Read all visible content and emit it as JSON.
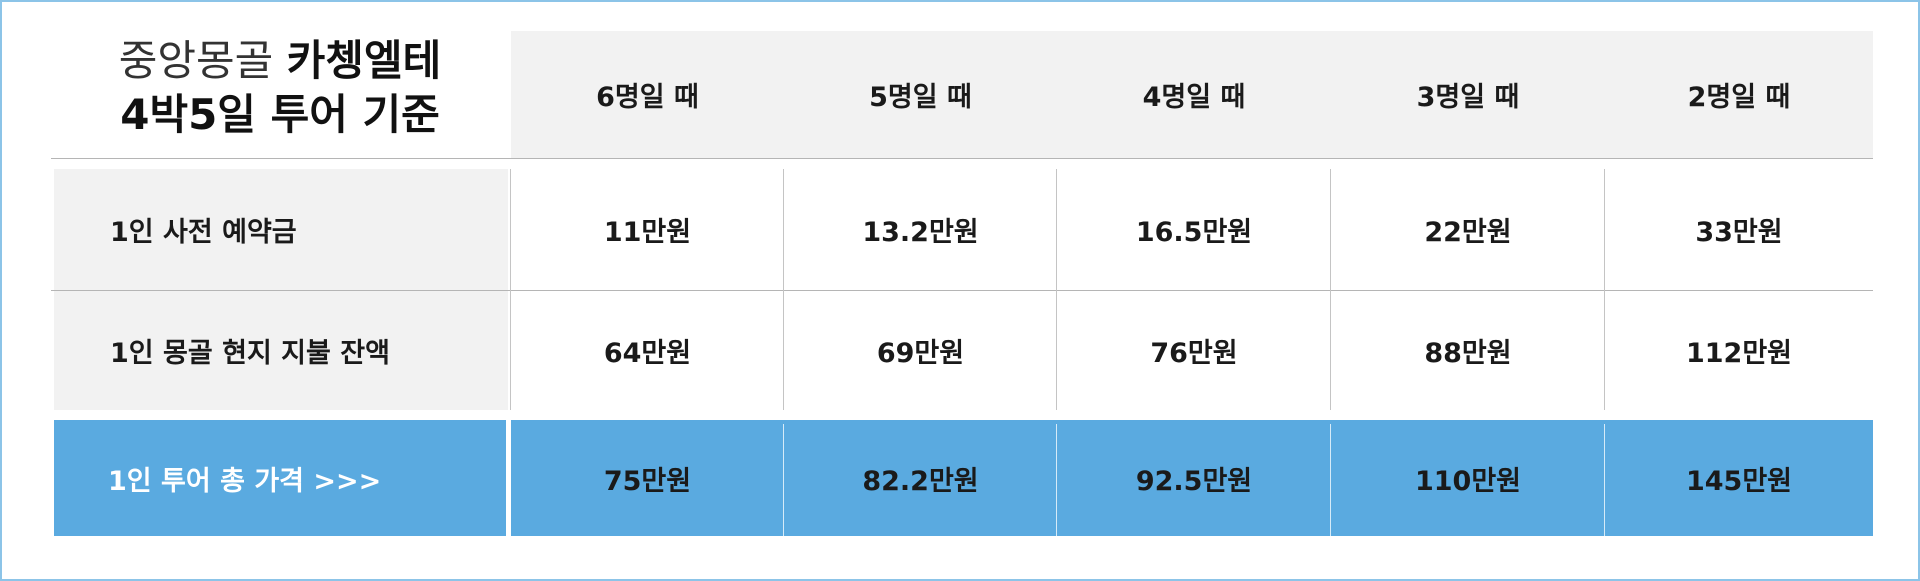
{
  "title": {
    "line1_light": "중앙몽골",
    "line1_bold": "카쳉엘테",
    "line2": "4박5일 투어 기준"
  },
  "columns": [
    "6명일 때",
    "5명일 때",
    "4명일 때",
    "3명일 때",
    "2명일 때"
  ],
  "rows": [
    {
      "label": "1인 사전 예약금",
      "values": [
        "11만원",
        "13.2만원",
        "16.5만원",
        "22만원",
        "33만원"
      ]
    },
    {
      "label": "1인 몽골 현지 지불 잔액",
      "values": [
        "64만원",
        "69만원",
        "76만원",
        "88만원",
        "112만원"
      ]
    },
    {
      "label": "1인 투어 총 가격  >>>",
      "values": [
        "75만원",
        "82.2만원",
        "92.5만원",
        "110만원",
        "145만원"
      ]
    }
  ],
  "colors": {
    "highlight": "#5aaae0",
    "header_bg": "#f2f2f2",
    "border": "#8cc4e8"
  }
}
